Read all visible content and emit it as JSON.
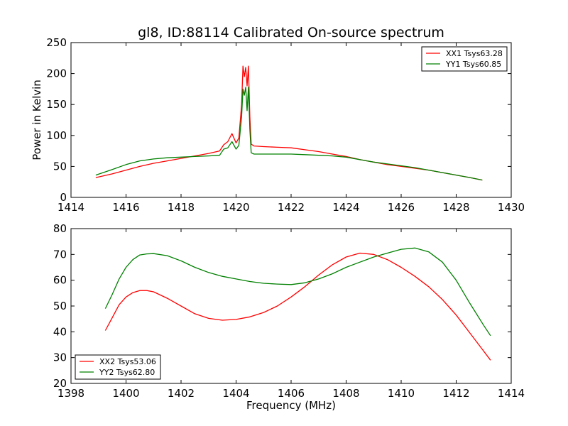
{
  "chart_data": [
    {
      "type": "line",
      "title": "gl8, ID:88114 Calibrated On-source spectrum",
      "xlabel": "",
      "ylabel": "Power in Kelvin",
      "xlim": [
        1414,
        1430
      ],
      "ylim": [
        0,
        250
      ],
      "xticks": [
        1414,
        1416,
        1418,
        1420,
        1422,
        1424,
        1426,
        1428,
        1430
      ],
      "yticks": [
        0,
        50,
        100,
        150,
        200,
        250
      ],
      "grid": false,
      "legend_position": "top-right",
      "series": [
        {
          "name": "XX1 Tsys63.28",
          "color": "#ff0000",
          "x": [
            1414.9,
            1415.5,
            1416.0,
            1416.5,
            1417.0,
            1417.5,
            1418.0,
            1418.5,
            1419.0,
            1419.4,
            1419.55,
            1419.7,
            1419.85,
            1420.0,
            1420.1,
            1420.2,
            1420.25,
            1420.3,
            1420.35,
            1420.4,
            1420.45,
            1420.5,
            1420.55,
            1420.65,
            1421.0,
            1421.5,
            1422.0,
            1422.5,
            1423.0,
            1423.5,
            1424.0,
            1424.5,
            1425.0,
            1425.5,
            1426.0,
            1426.5,
            1427.0,
            1427.5,
            1428.0,
            1428.5,
            1428.95
          ],
          "values": [
            32,
            38,
            44,
            50,
            55,
            59,
            63,
            67,
            71,
            75,
            85,
            90,
            103,
            88,
            96,
            150,
            212,
            195,
            210,
            180,
            212,
            130,
            86,
            83,
            82,
            81,
            80,
            77,
            74,
            70,
            66,
            61,
            57,
            53,
            50,
            47,
            44,
            40,
            36,
            32,
            28
          ]
        },
        {
          "name": "YY1 Tsys60.85",
          "color": "#008000",
          "x": [
            1414.9,
            1415.5,
            1416.0,
            1416.5,
            1417.0,
            1417.5,
            1418.0,
            1418.5,
            1419.0,
            1419.4,
            1419.55,
            1419.7,
            1419.85,
            1420.0,
            1420.1,
            1420.2,
            1420.25,
            1420.3,
            1420.35,
            1420.4,
            1420.45,
            1420.5,
            1420.55,
            1420.65,
            1421.0,
            1421.5,
            1422.0,
            1422.5,
            1423.0,
            1423.5,
            1424.0,
            1424.5,
            1425.0,
            1425.5,
            1426.0,
            1426.5,
            1427.0,
            1427.5,
            1428.0,
            1428.5,
            1428.95
          ],
          "values": [
            36,
            45,
            53,
            59,
            62,
            64,
            65,
            66,
            67,
            68,
            78,
            80,
            90,
            78,
            84,
            130,
            175,
            165,
            178,
            140,
            178,
            110,
            72,
            70,
            70,
            70,
            70,
            69,
            68,
            67,
            65,
            61,
            57,
            54,
            51,
            48,
            44,
            40,
            36,
            32,
            28
          ]
        }
      ]
    },
    {
      "type": "line",
      "title": "",
      "xlabel": "Frequency (MHz)",
      "ylabel": "",
      "xlim": [
        1398,
        1414
      ],
      "ylim": [
        20,
        80
      ],
      "xticks": [
        1398,
        1400,
        1402,
        1404,
        1406,
        1408,
        1410,
        1412,
        1414
      ],
      "yticks": [
        20,
        30,
        40,
        50,
        60,
        70,
        80
      ],
      "grid": false,
      "legend_position": "bottom-left",
      "series": [
        {
          "name": "XX2 Tsys53.06",
          "color": "#ff0000",
          "x": [
            1399.25,
            1399.5,
            1399.75,
            1400.0,
            1400.25,
            1400.5,
            1400.75,
            1401.0,
            1401.5,
            1402.0,
            1402.5,
            1403.0,
            1403.5,
            1404.0,
            1404.5,
            1405.0,
            1405.5,
            1406.0,
            1406.5,
            1407.0,
            1407.5,
            1408.0,
            1408.5,
            1409.0,
            1409.5,
            1410.0,
            1410.5,
            1411.0,
            1411.5,
            1412.0,
            1412.5,
            1413.0,
            1413.25
          ],
          "values": [
            40.5,
            45.5,
            50.5,
            53.5,
            55.2,
            56.0,
            56.0,
            55.5,
            53.0,
            50.0,
            47.0,
            45.2,
            44.5,
            44.8,
            45.8,
            47.5,
            50.0,
            53.5,
            57.5,
            62.0,
            66.0,
            69.0,
            70.5,
            70.0,
            68.0,
            65.0,
            61.5,
            57.5,
            52.5,
            46.5,
            39.5,
            32.5,
            29.0
          ]
        },
        {
          "name": "YY2 Tsys62.80",
          "color": "#008000",
          "x": [
            1399.25,
            1399.5,
            1399.75,
            1400.0,
            1400.25,
            1400.5,
            1400.75,
            1401.0,
            1401.5,
            1402.0,
            1402.5,
            1403.0,
            1403.5,
            1404.0,
            1404.5,
            1405.0,
            1405.5,
            1406.0,
            1406.5,
            1407.0,
            1407.5,
            1408.0,
            1408.5,
            1409.0,
            1409.5,
            1410.0,
            1410.5,
            1411.0,
            1411.5,
            1412.0,
            1412.5,
            1413.0,
            1413.25
          ],
          "values": [
            49.0,
            54.5,
            60.5,
            65.0,
            68.0,
            69.8,
            70.2,
            70.3,
            69.5,
            67.5,
            65.0,
            63.0,
            61.5,
            60.5,
            59.5,
            58.8,
            58.5,
            58.3,
            59.0,
            60.5,
            62.5,
            65.0,
            67.0,
            69.0,
            70.5,
            72.0,
            72.5,
            71.0,
            67.0,
            60.0,
            51.0,
            42.5,
            38.5
          ]
        }
      ]
    }
  ]
}
